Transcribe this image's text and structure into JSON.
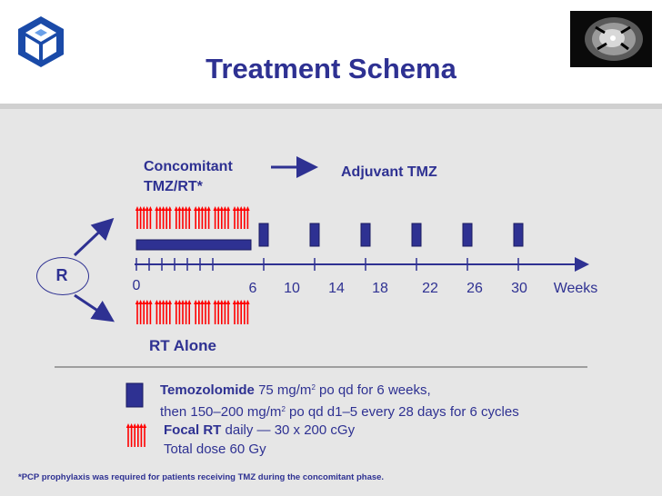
{
  "title": "Treatment Schema",
  "randomize_label": "R",
  "arms": {
    "top_label_line1": "Concomitant",
    "top_label_line2": "TMZ/RT*",
    "adjuvant_label": "Adjuvant TMZ",
    "bottom_label": "RT Alone"
  },
  "axis": {
    "ticks": [
      "0",
      "6",
      "10",
      "14",
      "18",
      "22",
      "26",
      "30"
    ],
    "unit": "Weeks"
  },
  "legend": {
    "tmz_drug": "Temozolomide",
    "tmz_line1_dose": " 75 mg/m",
    "tmz_line1_sup": "2",
    "tmz_line1_rest": " po qd for 6 weeks,",
    "tmz_line2_dose": "then 150–200 mg/m",
    "tmz_line2_sup": "2",
    "tmz_line2_rest": " po qd d1–5 every 28 days for 6 cycles",
    "rt_name": "Focal RT",
    "rt_line1_rest": " daily — 30 x 200 cGy",
    "rt_line2": "Total dose 60 Gy"
  },
  "footnote": "*PCP prophylaxis was required for patients receiving TMZ during the concomitant phase.",
  "colors": {
    "text": "#2e3192",
    "bar": "#2e3192",
    "rt_arrow": "#ff0000",
    "panel": "#e6e6e6"
  }
}
